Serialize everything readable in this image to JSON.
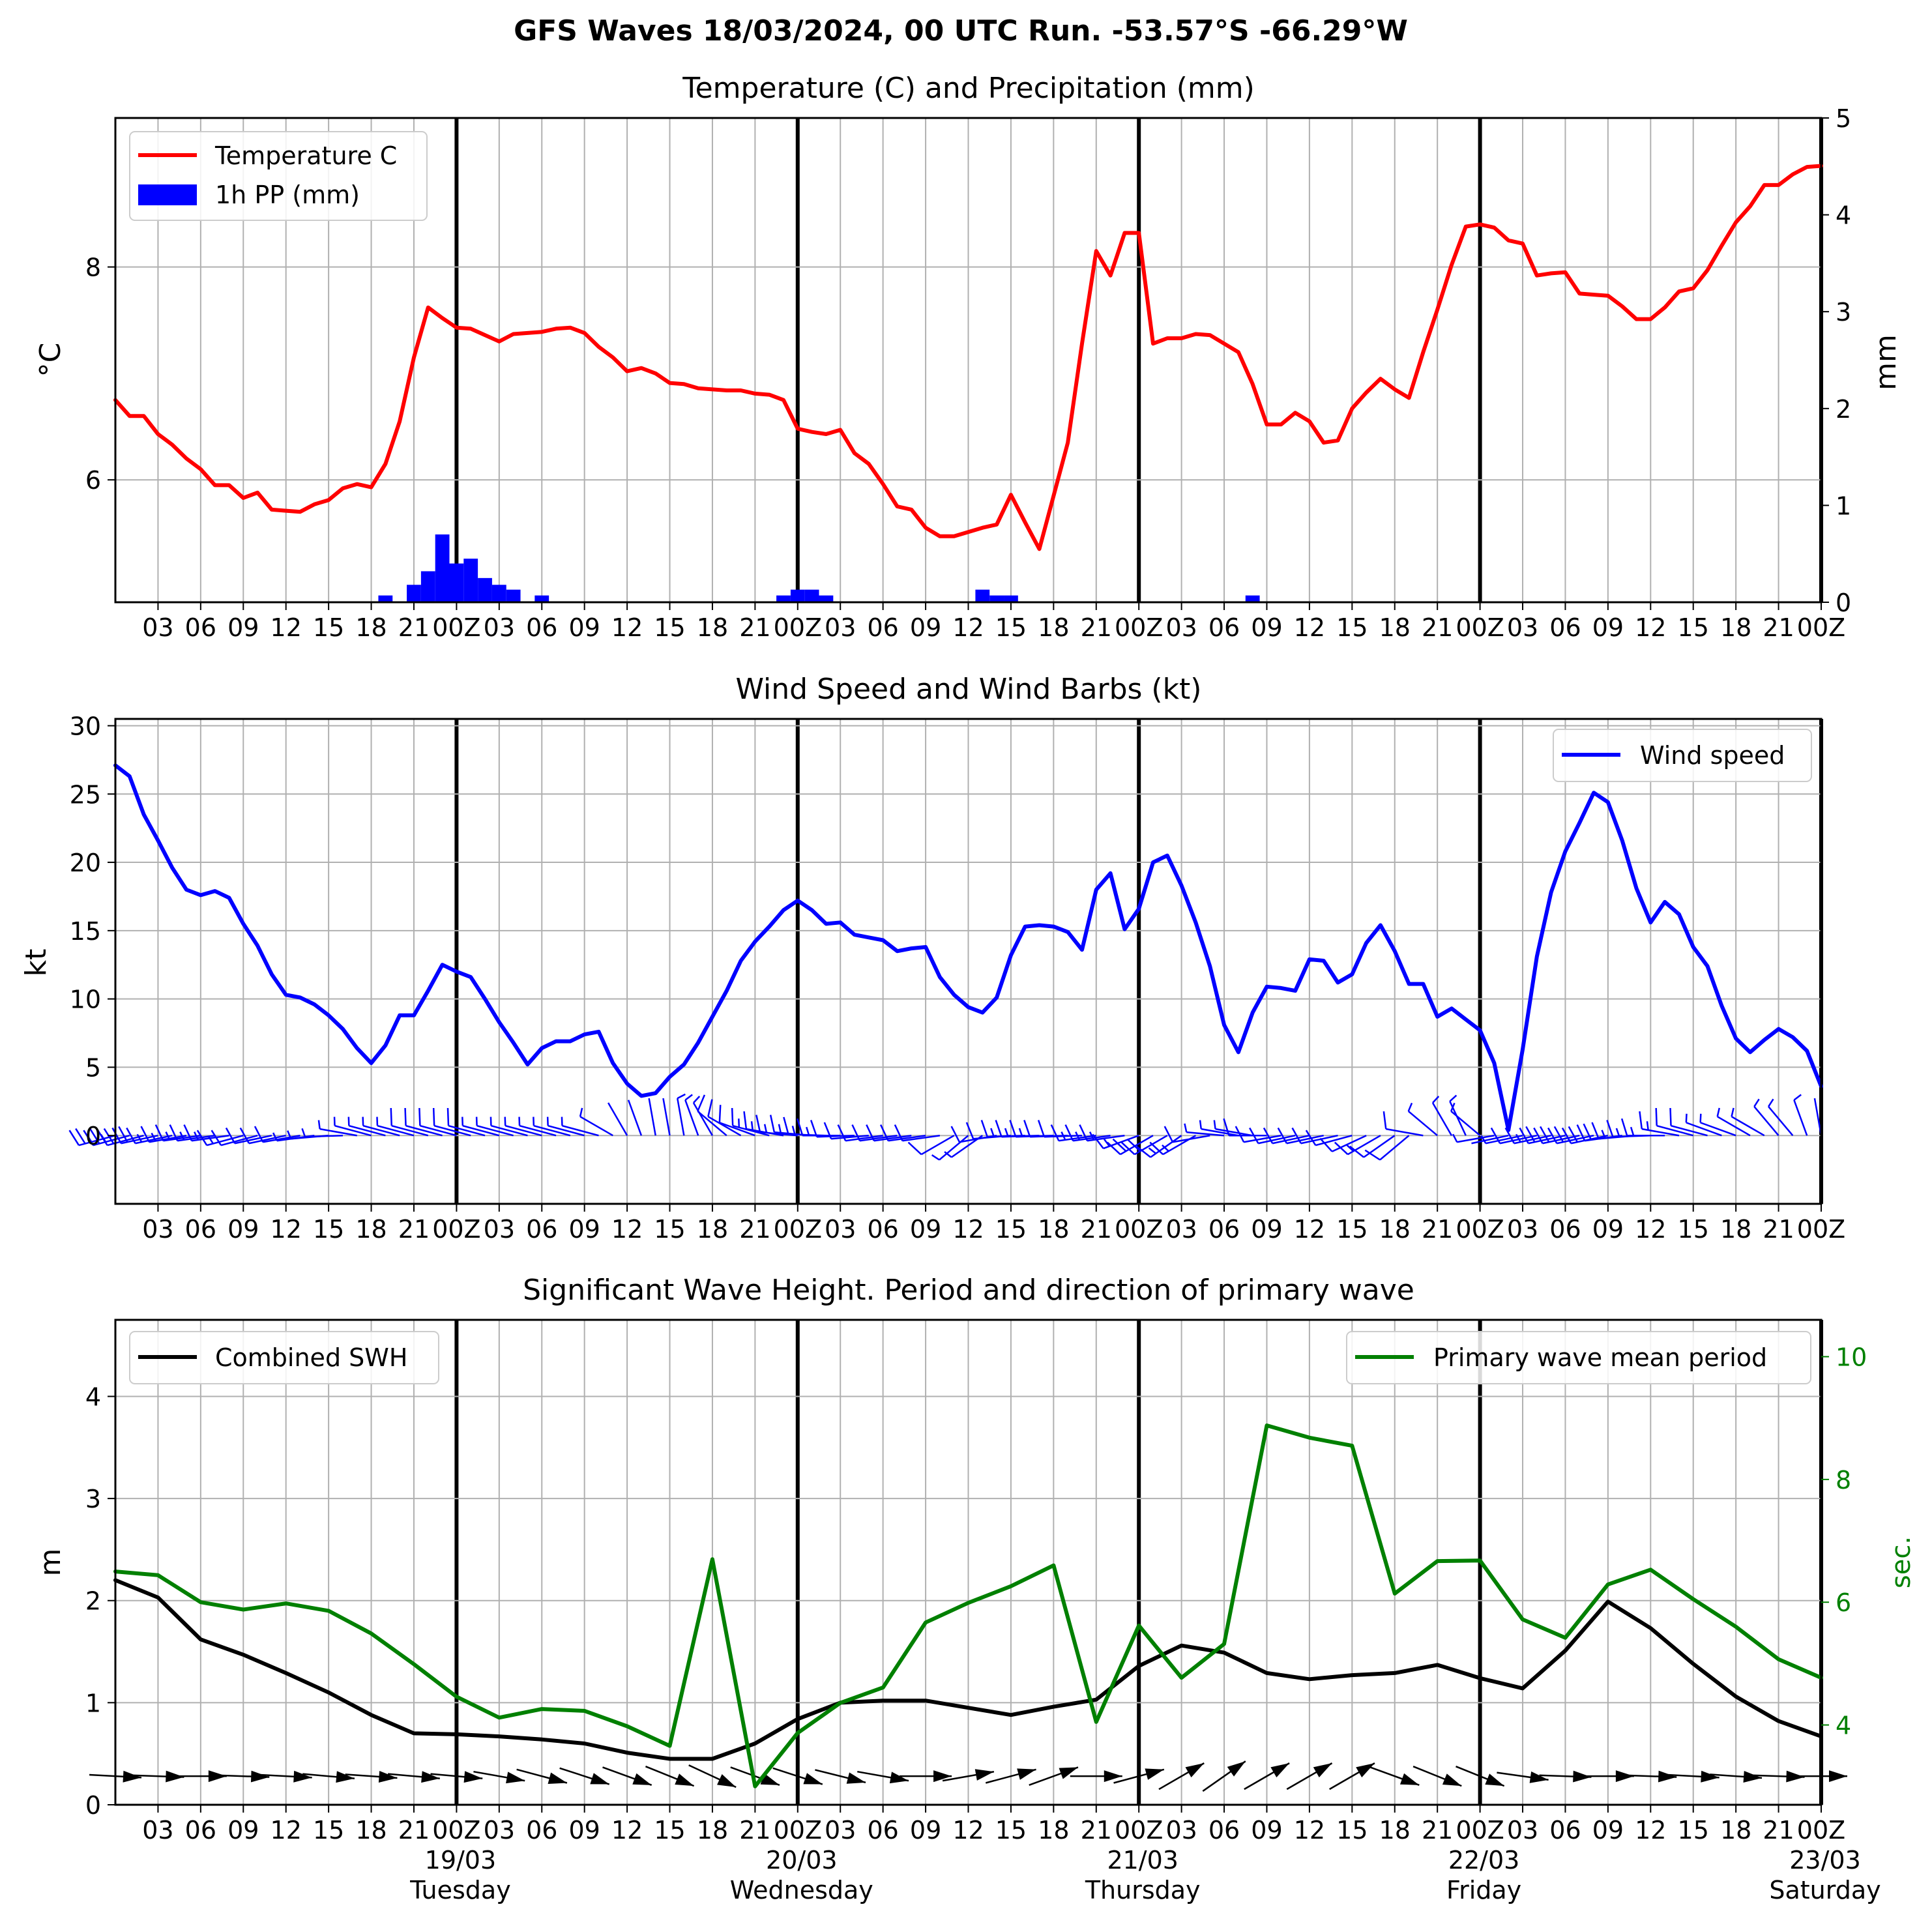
{
  "title": "GFS Waves 18/03/2024, 00 UTC Run. -53.57°S -66.29°W",
  "hour_ticks": [
    "03",
    "06",
    "09",
    "12",
    "15",
    "18",
    "21",
    "00Z",
    "03",
    "06",
    "09",
    "12",
    "15",
    "18",
    "21",
    "00Z",
    "03",
    "06",
    "09",
    "12",
    "15",
    "18",
    "21",
    "00Z",
    "03",
    "06",
    "09",
    "12",
    "15",
    "18",
    "21",
    "00Z",
    "03",
    "06",
    "09",
    "12",
    "15",
    "18",
    "21",
    "00Z"
  ],
  "day_labels": [
    {
      "date": "19/03",
      "day": "Tuesday"
    },
    {
      "date": "20/03",
      "day": "Wednesday"
    },
    {
      "date": "21/03",
      "day": "Thursday"
    },
    {
      "date": "22/03",
      "day": "Friday"
    },
    {
      "date": "23/03",
      "day": "Saturday"
    }
  ],
  "chart_data": [
    {
      "type": "line",
      "title": "Temperature (C) and Precipitation (mm)",
      "x_unit": "hours since 18/03 00 UTC",
      "xlim": [
        0,
        120
      ],
      "ylabel": "$^\\circ$C",
      "ylim": [
        4.85,
        9.4
      ],
      "yticks": [
        6,
        8
      ],
      "y2label": "mm",
      "y2lim": [
        0,
        5
      ],
      "y2ticks": [
        0,
        1,
        2,
        3,
        4,
        5
      ],
      "legend": [
        "Temperature C",
        "1h PP (mm)"
      ],
      "legend_position": "top-left",
      "temperature": {
        "name": "Temperature C",
        "color": "#ff0000",
        "x": [
          0,
          1,
          2,
          3,
          4,
          5,
          6,
          7,
          8,
          9,
          10,
          11,
          12,
          13,
          14,
          15,
          16,
          17,
          18,
          19,
          20,
          21,
          22,
          23,
          24,
          25,
          26,
          27,
          28,
          29,
          30,
          31,
          32,
          33,
          34,
          35,
          36,
          37,
          38,
          39,
          40,
          41,
          42,
          43,
          44,
          45,
          46,
          47,
          48,
          49,
          50,
          51,
          52,
          53,
          54,
          55,
          56,
          57,
          58,
          59,
          60,
          61,
          62,
          63,
          64,
          65,
          66,
          67,
          68,
          69,
          70,
          71,
          72,
          73,
          74,
          75,
          76,
          77,
          78,
          79,
          80,
          81,
          82,
          83,
          84,
          85,
          86,
          87,
          88,
          89,
          90,
          91,
          92,
          93,
          94,
          95,
          96,
          97,
          98,
          99,
          100,
          101,
          102,
          103,
          104,
          105,
          106,
          107,
          108,
          109,
          110,
          111,
          112,
          113,
          114,
          115,
          116,
          117,
          118,
          119,
          120
        ],
        "values": [
          6.75,
          6.6,
          6.6,
          6.43,
          6.33,
          6.2,
          6.1,
          5.95,
          5.95,
          5.83,
          5.88,
          5.72,
          5.71,
          5.7,
          5.77,
          5.81,
          5.92,
          5.96,
          5.93,
          6.15,
          6.55,
          7.15,
          7.62,
          7.52,
          7.43,
          7.42,
          7.36,
          7.3,
          7.37,
          7.38,
          7.39,
          7.42,
          7.43,
          7.38,
          7.25,
          7.15,
          7.02,
          7.05,
          7.0,
          6.91,
          6.9,
          6.86,
          6.85,
          6.84,
          6.84,
          6.81,
          6.8,
          6.75,
          6.48,
          6.45,
          6.43,
          6.47,
          6.25,
          6.15,
          5.96,
          5.75,
          5.72,
          5.55,
          5.47,
          5.47,
          5.51,
          5.55,
          5.58,
          5.86,
          5.6,
          5.35,
          5.85,
          6.35,
          7.28,
          8.15,
          7.92,
          8.32,
          8.32,
          7.28,
          7.33,
          7.33,
          7.37,
          7.36,
          7.28,
          7.2,
          6.9,
          6.52,
          6.52,
          6.63,
          6.55,
          6.35,
          6.37,
          6.67,
          6.82,
          6.95,
          6.85,
          6.77,
          7.2,
          7.6,
          8.02,
          8.38,
          8.4,
          8.37,
          8.25,
          8.22,
          7.92,
          7.94,
          7.95,
          7.75,
          7.74,
          7.73,
          7.63,
          7.51,
          7.51,
          7.62,
          7.77,
          7.8,
          7.97,
          8.2,
          8.42,
          8.57,
          8.77,
          8.77,
          8.87,
          8.94,
          8.95
        ]
      },
      "precipitation": {
        "name": "1h PP (mm)",
        "color": "#0000ff",
        "hours": [
          19,
          21,
          22,
          23,
          24,
          25,
          26,
          27,
          28,
          30,
          47,
          48,
          49,
          50,
          61,
          62,
          63,
          80
        ],
        "values": [
          0.07,
          0.18,
          0.32,
          0.7,
          0.4,
          0.45,
          0.25,
          0.18,
          0.13,
          0.07,
          0.07,
          0.13,
          0.13,
          0.07,
          0.13,
          0.07,
          0.07,
          0.07
        ]
      },
      "grid": true
    },
    {
      "type": "line",
      "title": "Wind Speed and Wind Barbs (kt)",
      "x_unit": "hours since 18/03 00 UTC",
      "xlim": [
        0,
        120
      ],
      "ylabel": "kt",
      "ylim": [
        -5,
        30.5
      ],
      "yticks": [
        0,
        5,
        10,
        15,
        20,
        25,
        30
      ],
      "legend": [
        "Wind speed"
      ],
      "legend_position": "top-right",
      "series": [
        {
          "name": "Wind speed",
          "color": "#0000ff",
          "x": [
            0,
            1,
            2,
            3,
            4,
            5,
            6,
            7,
            8,
            9,
            10,
            11,
            12,
            13,
            14,
            15,
            16,
            17,
            18,
            19,
            20,
            21,
            22,
            23,
            24,
            25,
            26,
            27,
            28,
            29,
            30,
            31,
            32,
            33,
            34,
            35,
            36,
            37,
            38,
            39,
            40,
            41,
            42,
            43,
            44,
            45,
            46,
            47,
            48,
            49,
            50,
            51,
            52,
            53,
            54,
            55,
            56,
            57,
            58,
            59,
            60,
            61,
            62,
            63,
            64,
            65,
            66,
            67,
            68,
            69,
            70,
            71,
            72,
            73,
            74,
            75,
            76,
            77,
            78,
            79,
            80,
            81,
            82,
            83,
            84,
            85,
            86,
            87,
            88,
            89,
            90,
            91,
            92,
            93,
            94,
            95,
            96,
            97,
            98,
            99,
            100,
            101,
            102,
            103,
            104,
            105,
            106,
            107,
            108,
            109,
            110,
            111,
            112,
            113,
            114,
            115,
            116,
            117,
            118,
            119,
            120
          ],
          "values": [
            27.1,
            26.3,
            23.5,
            21.6,
            19.6,
            18.0,
            17.6,
            17.9,
            17.4,
            15.5,
            13.9,
            11.8,
            10.3,
            10.1,
            9.6,
            8.8,
            7.8,
            6.4,
            5.3,
            6.6,
            8.8,
            8.8,
            10.6,
            12.5,
            12.0,
            11.6,
            10.0,
            8.3,
            6.8,
            5.2,
            6.4,
            6.9,
            6.9,
            7.4,
            7.6,
            5.3,
            3.8,
            2.9,
            3.1,
            4.3,
            5.2,
            6.8,
            8.7,
            10.6,
            12.8,
            14.2,
            15.3,
            16.5,
            17.2,
            16.5,
            15.5,
            15.6,
            14.7,
            14.5,
            14.3,
            13.5,
            13.7,
            13.8,
            11.6,
            10.3,
            9.4,
            9.0,
            10.1,
            13.2,
            15.3,
            15.4,
            15.3,
            14.9,
            13.6,
            18.0,
            19.2,
            15.1,
            16.6,
            20.0,
            20.5,
            18.3,
            15.6,
            12.4,
            8.1,
            6.1,
            9.0,
            10.9,
            10.8,
            10.6,
            12.9,
            12.8,
            11.2,
            11.8,
            14.1,
            15.4,
            13.5,
            11.1,
            11.1,
            8.7,
            9.3,
            8.5,
            7.7,
            5.3,
            0.4,
            6.3,
            13.1,
            17.8,
            20.8,
            22.9,
            25.1,
            24.4,
            21.6,
            18.1,
            15.6,
            17.1,
            16.2,
            13.8,
            12.4,
            9.5,
            7.1,
            6.1,
            7.0,
            7.8,
            7.2,
            6.2,
            3.6
          ]
        }
      ],
      "wind_barbs": {
        "color": "#0000ff",
        "x": [
          0,
          1,
          2,
          3,
          4,
          5,
          6,
          7,
          8,
          9,
          10,
          11,
          12,
          13,
          14,
          15,
          16,
          17,
          18,
          19,
          20,
          21,
          22,
          23,
          24,
          25,
          26,
          27,
          28,
          29,
          30,
          31,
          32,
          33,
          34,
          35,
          36,
          37,
          38,
          39,
          40,
          41,
          42,
          43,
          44,
          45,
          46,
          47,
          48,
          49,
          50,
          51,
          52,
          53,
          54,
          55,
          56,
          57,
          58,
          59,
          60,
          61,
          62,
          63,
          64,
          65,
          66,
          67,
          68,
          69,
          70,
          71,
          72,
          73,
          74,
          75,
          76,
          77,
          78,
          79,
          80,
          81,
          82,
          83,
          84,
          85,
          86,
          87,
          88,
          89,
          90,
          91,
          92,
          93,
          94,
          95,
          96,
          97,
          98,
          99,
          100,
          101,
          102,
          103,
          104,
          105,
          106,
          107,
          108,
          109,
          110,
          111,
          112,
          113,
          114,
          115,
          116,
          117,
          118,
          119,
          120
        ],
        "from_direction_deg": [
          255,
          255,
          255,
          258,
          258,
          260,
          262,
          262,
          262,
          255,
          255,
          258,
          258,
          260,
          262,
          265,
          268,
          280,
          285,
          285,
          285,
          285,
          285,
          285,
          285,
          285,
          285,
          285,
          285,
          285,
          285,
          285,
          285,
          285,
          285,
          300,
          330,
          340,
          350,
          350,
          350,
          340,
          330,
          310,
          300,
          290,
          285,
          280,
          275,
          275,
          272,
          270,
          268,
          265,
          262,
          262,
          262,
          262,
          262,
          240,
          230,
          235,
          260,
          265,
          268,
          268,
          268,
          268,
          268,
          262,
          262,
          262,
          250,
          240,
          240,
          235,
          240,
          260,
          275,
          280,
          280,
          270,
          260,
          258,
          258,
          258,
          258,
          255,
          245,
          240,
          235,
          230,
          280,
          310,
          330,
          335,
          310,
          260,
          258,
          258,
          258,
          258,
          258,
          258,
          258,
          258,
          262,
          265,
          268,
          270,
          280,
          285,
          285,
          290,
          290,
          300,
          300,
          320,
          320,
          340,
          350
        ]
      },
      "grid": true
    },
    {
      "type": "line",
      "title": "Significant Wave Height. Period and direction of primary wave",
      "x_unit": "hours since 18/03 00 UTC",
      "xlim": [
        0,
        120
      ],
      "ylabel": "m",
      "ylim": [
        0,
        4.75
      ],
      "yticks": [
        0,
        1,
        2,
        3,
        4
      ],
      "y2label": "sec.",
      "y2lim": [
        2.7,
        10.6
      ],
      "y2ticks": [
        4,
        6,
        8,
        10
      ],
      "series": [
        {
          "name": "Combined SWH",
          "color": "#000000",
          "axis": "left",
          "x": [
            0,
            3,
            6,
            9,
            12,
            15,
            18,
            21,
            24,
            27,
            30,
            33,
            36,
            39,
            42,
            45,
            48,
            51,
            54,
            57,
            60,
            63,
            66,
            69,
            72,
            75,
            78,
            81,
            84,
            87,
            90,
            93,
            96,
            99,
            102,
            105,
            108,
            111,
            114,
            117,
            120
          ],
          "values": [
            2.2,
            2.03,
            1.62,
            1.47,
            1.29,
            1.1,
            0.88,
            0.7,
            0.69,
            0.67,
            0.64,
            0.6,
            0.51,
            0.45,
            0.45,
            0.6,
            0.84,
            1.0,
            1.02,
            1.02,
            0.95,
            0.88,
            0.96,
            1.03,
            1.36,
            1.56,
            1.49,
            1.29,
            1.23,
            1.27,
            1.29,
            1.37,
            1.24,
            1.14,
            1.51,
            1.99,
            1.73,
            1.38,
            1.06,
            0.82,
            0.67
          ]
        },
        {
          "name": "Primary wave mean period",
          "color": "#008000",
          "axis": "right",
          "x": [
            0,
            3,
            6,
            9,
            12,
            15,
            18,
            21,
            24,
            27,
            30,
            33,
            36,
            39,
            42,
            45,
            48,
            51,
            54,
            57,
            60,
            63,
            66,
            69,
            72,
            75,
            78,
            81,
            84,
            87,
            90,
            93,
            96,
            99,
            102,
            105,
            108,
            111,
            114,
            117,
            120
          ],
          "values": [
            6.5,
            6.44,
            6.0,
            5.88,
            5.98,
            5.86,
            5.49,
            4.99,
            4.46,
            4.12,
            4.26,
            4.23,
            3.98,
            3.66,
            6.7,
            3.0,
            3.87,
            4.36,
            4.61,
            5.67,
            5.99,
            6.26,
            6.6,
            4.05,
            5.62,
            4.77,
            5.32,
            8.88,
            8.68,
            8.55,
            6.14,
            6.67,
            6.68,
            5.72,
            5.42,
            6.29,
            6.53,
            6.05,
            5.6,
            5.07,
            4.77
          ]
        }
      ],
      "legend": [
        "Combined SWH",
        "Primary wave mean period"
      ],
      "legend_position": "top-left / top-right",
      "wave_direction": {
        "color": "#000000",
        "x": [
          0,
          3,
          6,
          9,
          12,
          15,
          18,
          21,
          24,
          27,
          30,
          33,
          36,
          39,
          42,
          45,
          48,
          51,
          54,
          57,
          60,
          63,
          66,
          69,
          72,
          75,
          78,
          81,
          84,
          87,
          90,
          93,
          96,
          99,
          102,
          105,
          108,
          111,
          114,
          117,
          120
        ],
        "toward_deg": [
          93,
          92,
          90,
          92,
          93,
          95,
          94,
          95,
          95,
          100,
          105,
          108,
          110,
          112,
          115,
          110,
          108,
          104,
          100,
          90,
          80,
          75,
          70,
          90,
          75,
          60,
          55,
          60,
          60,
          60,
          110,
          112,
          112,
          98,
          92,
          90,
          92,
          93,
          94,
          92,
          90
        ]
      },
      "grid": true
    }
  ]
}
